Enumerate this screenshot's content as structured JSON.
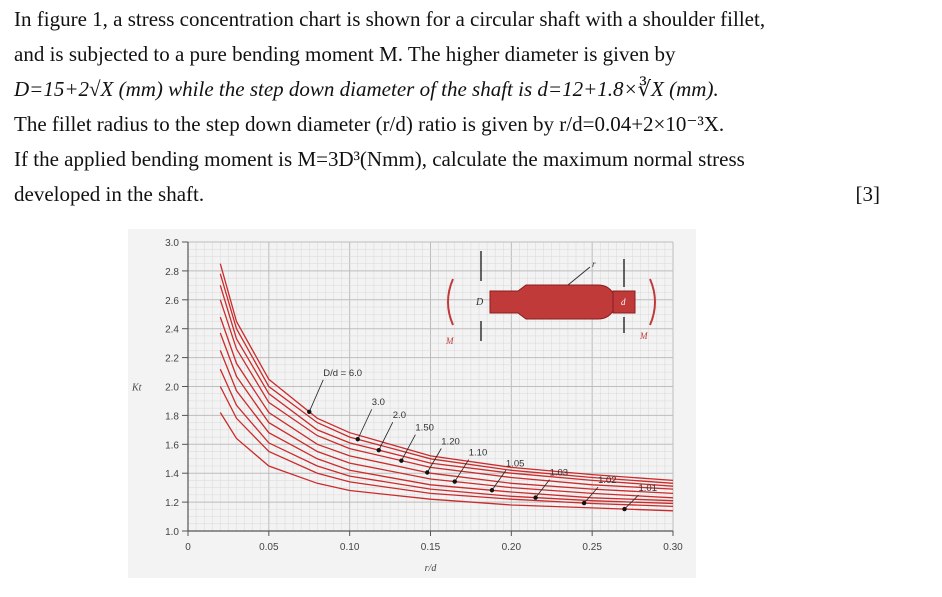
{
  "question": {
    "line1": "In figure 1, a stress concentration chart is shown for a circular shaft with a shoulder fillet,",
    "line2": "and is subjected to a pure bending moment M. The higher diameter is given by",
    "line3": "D=15+2√X (mm) while the step down diameter of the shaft is d=12+1.8×∛X (mm).",
    "line4": "The fillet radius to the step down diameter (r/d) ratio is given by r/d=0.04+2×10⁻³X.",
    "line5": "If the applied bending moment is M=3D³(Nmm), calculate the maximum normal stress",
    "line6": "developed in the shaft.",
    "marks": "[3]"
  },
  "chart_data": {
    "type": "line",
    "xlabel": "r/d",
    "ylabel": "Kt",
    "xlim": [
      0,
      0.3
    ],
    "ylim": [
      1.0,
      3.0
    ],
    "x_ticks": [
      "0",
      "0.05",
      "0.10",
      "0.15",
      "0.20",
      "0.25",
      "0.30"
    ],
    "y_ticks": [
      "1.0",
      "1.2",
      "1.4",
      "1.6",
      "1.8",
      "2.0",
      "2.2",
      "2.4",
      "2.6",
      "2.8",
      "3.0"
    ],
    "series": [
      {
        "name": "D/d = 6.0",
        "x": [
          0.02,
          0.03,
          0.05,
          0.08,
          0.1,
          0.15,
          0.2,
          0.25,
          0.3
        ],
        "values": [
          2.85,
          2.45,
          2.05,
          1.78,
          1.68,
          1.52,
          1.44,
          1.39,
          1.35
        ]
      },
      {
        "name": "3.0",
        "x": [
          0.02,
          0.03,
          0.05,
          0.08,
          0.1,
          0.15,
          0.2,
          0.25,
          0.3
        ],
        "values": [
          2.78,
          2.4,
          2.0,
          1.75,
          1.65,
          1.5,
          1.42,
          1.37,
          1.33
        ]
      },
      {
        "name": "2.0",
        "x": [
          0.02,
          0.03,
          0.05,
          0.08,
          0.1,
          0.15,
          0.2,
          0.25,
          0.3
        ],
        "values": [
          2.7,
          2.33,
          1.95,
          1.7,
          1.61,
          1.47,
          1.4,
          1.35,
          1.31
        ]
      },
      {
        "name": "1.50",
        "x": [
          0.02,
          0.03,
          0.05,
          0.08,
          0.1,
          0.15,
          0.2,
          0.25,
          0.3
        ],
        "values": [
          2.6,
          2.26,
          1.89,
          1.66,
          1.57,
          1.44,
          1.37,
          1.32,
          1.29
        ]
      },
      {
        "name": "1.20",
        "x": [
          0.02,
          0.03,
          0.05,
          0.08,
          0.1,
          0.15,
          0.2,
          0.25,
          0.3
        ],
        "values": [
          2.48,
          2.16,
          1.82,
          1.6,
          1.52,
          1.4,
          1.33,
          1.29,
          1.26
        ]
      },
      {
        "name": "1.10",
        "x": [
          0.02,
          0.03,
          0.05,
          0.08,
          0.1,
          0.15,
          0.2,
          0.25,
          0.3
        ],
        "values": [
          2.37,
          2.07,
          1.75,
          1.55,
          1.47,
          1.36,
          1.3,
          1.26,
          1.23
        ]
      },
      {
        "name": "1.05",
        "x": [
          0.02,
          0.03,
          0.05,
          0.08,
          0.1,
          0.15,
          0.2,
          0.25,
          0.3
        ],
        "values": [
          2.25,
          1.97,
          1.68,
          1.5,
          1.42,
          1.32,
          1.27,
          1.23,
          1.21
        ]
      },
      {
        "name": "1.03",
        "x": [
          0.02,
          0.03,
          0.05,
          0.08,
          0.1,
          0.15,
          0.2,
          0.25,
          0.3
        ],
        "values": [
          2.12,
          1.87,
          1.61,
          1.45,
          1.38,
          1.29,
          1.24,
          1.21,
          1.19
        ]
      },
      {
        "name": "1.02",
        "x": [
          0.02,
          0.03,
          0.05,
          0.08,
          0.1,
          0.15,
          0.2,
          0.25,
          0.3
        ],
        "values": [
          2.0,
          1.78,
          1.55,
          1.4,
          1.34,
          1.26,
          1.22,
          1.19,
          1.17
        ]
      },
      {
        "name": "1.01",
        "x": [
          0.02,
          0.03,
          0.05,
          0.08,
          0.1,
          0.15,
          0.2,
          0.25,
          0.3
        ],
        "values": [
          1.82,
          1.64,
          1.45,
          1.33,
          1.28,
          1.22,
          1.18,
          1.16,
          1.14
        ]
      }
    ],
    "diagram_labels": {
      "D": "D",
      "d": "d",
      "r": "r",
      "M_left": "M",
      "M_right": "M"
    },
    "colors": {
      "curve": "#cc2b2b",
      "grid": "#d8d8d8",
      "background": "#f3f3f3",
      "axis": "#555555"
    }
  }
}
